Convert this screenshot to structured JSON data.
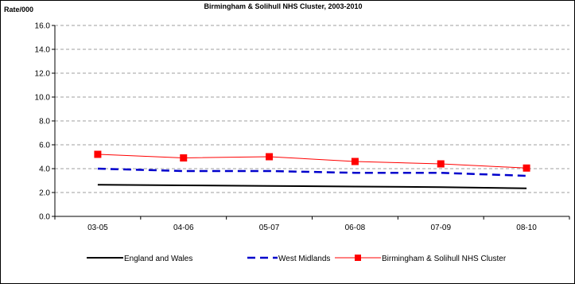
{
  "chart_data": {
    "type": "line",
    "title": "Birmingham & Solihull NHS Cluster, 2003-2010",
    "ylabel": "Rate/000",
    "xlabel": "",
    "ylim": [
      0,
      16
    ],
    "y_ticks": [
      "0.0",
      "2.0",
      "4.0",
      "6.0",
      "8.0",
      "10.0",
      "12.0",
      "14.0",
      "16.0"
    ],
    "categories": [
      "03-05",
      "04-06",
      "05-07",
      "06-08",
      "07-09",
      "08-10"
    ],
    "grid": true,
    "legend_position": "bottom",
    "series": [
      {
        "name": "England and Wales",
        "values": [
          2.65,
          2.6,
          2.55,
          2.5,
          2.45,
          2.35
        ],
        "color": "#000000",
        "style": "solid",
        "marker": "none"
      },
      {
        "name": "West Midlands",
        "values": [
          4.0,
          3.8,
          3.8,
          3.65,
          3.65,
          3.4
        ],
        "color": "#0000cc",
        "style": "dashed",
        "marker": "none"
      },
      {
        "name": "Birmingham & Solihull NHS Cluster",
        "values": [
          5.2,
          4.9,
          5.0,
          4.6,
          4.4,
          4.05
        ],
        "color": "#ff0000",
        "style": "solid",
        "marker": "square"
      }
    ]
  }
}
